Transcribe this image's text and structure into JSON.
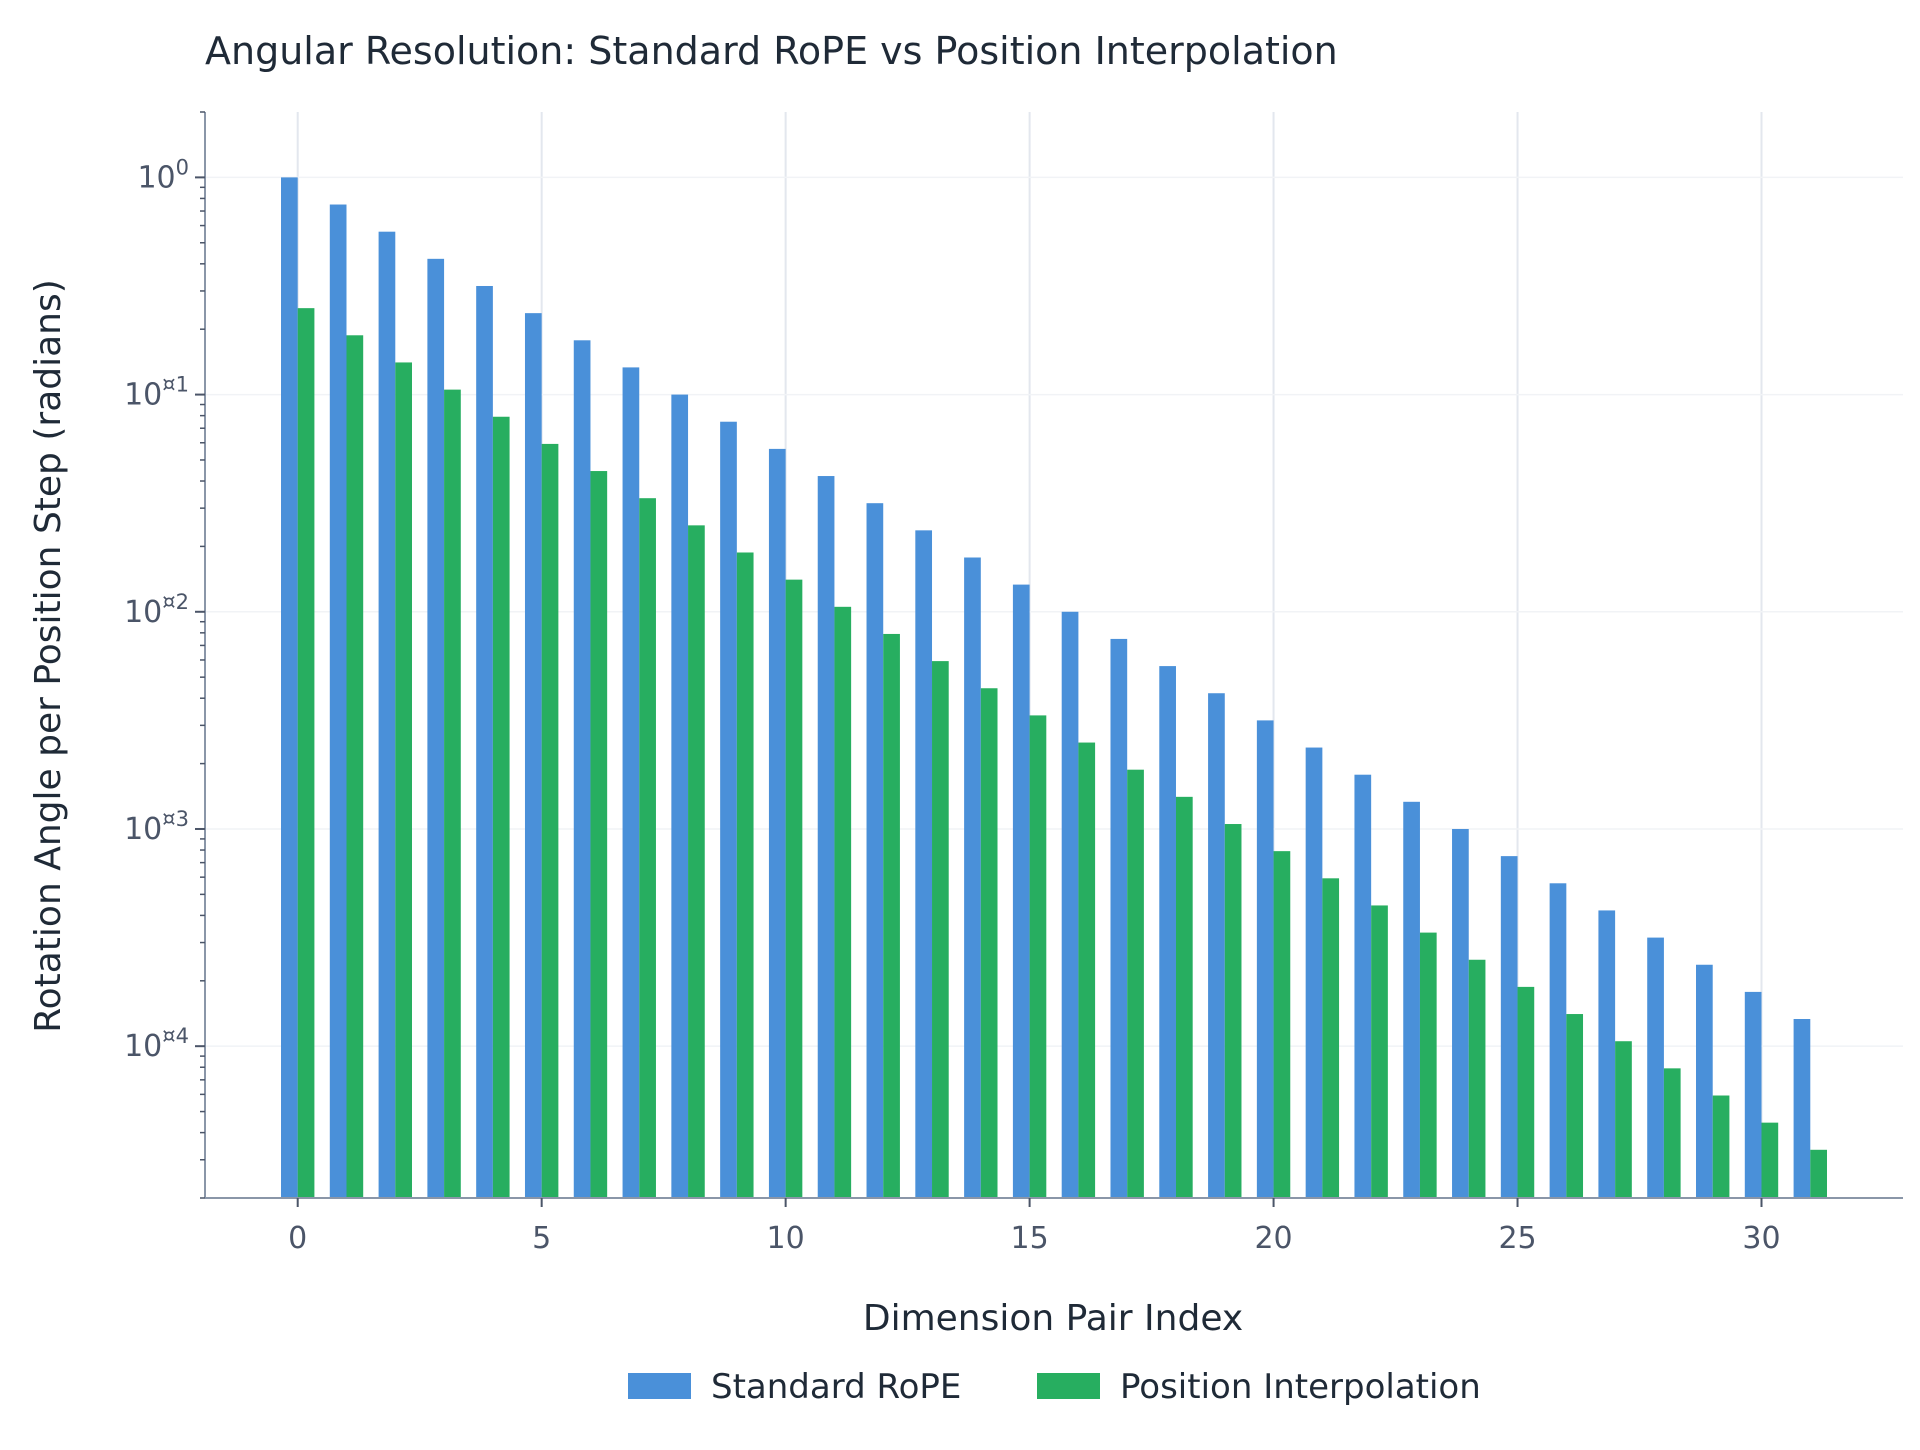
{
  "chart_data": {
    "type": "bar",
    "title": "Angular Resolution: Standard RoPE vs Position Interpolation",
    "xlabel": "Dimension Pair Index",
    "ylabel": "Rotation Angle per Position Step (radians)",
    "yscale": "log",
    "ylim": [
      2e-05,
      2
    ],
    "xlim": [
      -1.9,
      32.9
    ],
    "grid": true,
    "legend_position": "bottom-center",
    "x_ticks": [
      0,
      5,
      10,
      15,
      20,
      25,
      30
    ],
    "y_ticks": [
      {
        "value": 1,
        "base": "10",
        "exp": "0"
      },
      {
        "value": 0.1,
        "base": "10",
        "exp": "¤1"
      },
      {
        "value": 0.01,
        "base": "10",
        "exp": "¤2"
      },
      {
        "value": 0.001,
        "base": "10",
        "exp": "¤3"
      },
      {
        "value": 0.0001,
        "base": "10",
        "exp": "¤4"
      }
    ],
    "categories": [
      0,
      1,
      2,
      3,
      4,
      5,
      6,
      7,
      8,
      9,
      10,
      11,
      12,
      13,
      14,
      15,
      16,
      17,
      18,
      19,
      20,
      21,
      22,
      23,
      24,
      25,
      26,
      27,
      28,
      29,
      30,
      31
    ],
    "series": [
      {
        "name": "Standard RoPE",
        "color": "#4a90d9",
        "values": [
          1.0,
          0.75,
          0.5623,
          0.4217,
          0.3162,
          0.2371,
          0.1778,
          0.1334,
          0.1,
          0.075,
          0.05623,
          0.04217,
          0.03162,
          0.02371,
          0.01778,
          0.01334,
          0.01,
          0.0075,
          0.005623,
          0.004217,
          0.003162,
          0.002371,
          0.001778,
          0.001334,
          0.001,
          0.00075,
          0.0005623,
          0.0004217,
          0.0003162,
          0.0002371,
          0.0001778,
          0.0001334
        ]
      },
      {
        "name": "Position Interpolation",
        "color": "#27ae60",
        "values": [
          0.25,
          0.1875,
          0.1406,
          0.1054,
          0.07906,
          0.05928,
          0.04446,
          0.03334,
          0.025,
          0.01875,
          0.01406,
          0.01054,
          0.007906,
          0.005928,
          0.004446,
          0.003334,
          0.0025,
          0.001875,
          0.001406,
          0.001054,
          0.0007906,
          0.0005928,
          0.0004446,
          0.0003334,
          0.00025,
          0.0001875,
          0.0001406,
          0.0001054,
          7.906e-05,
          5.928e-05,
          4.446e-05,
          3.334e-05
        ]
      }
    ]
  }
}
